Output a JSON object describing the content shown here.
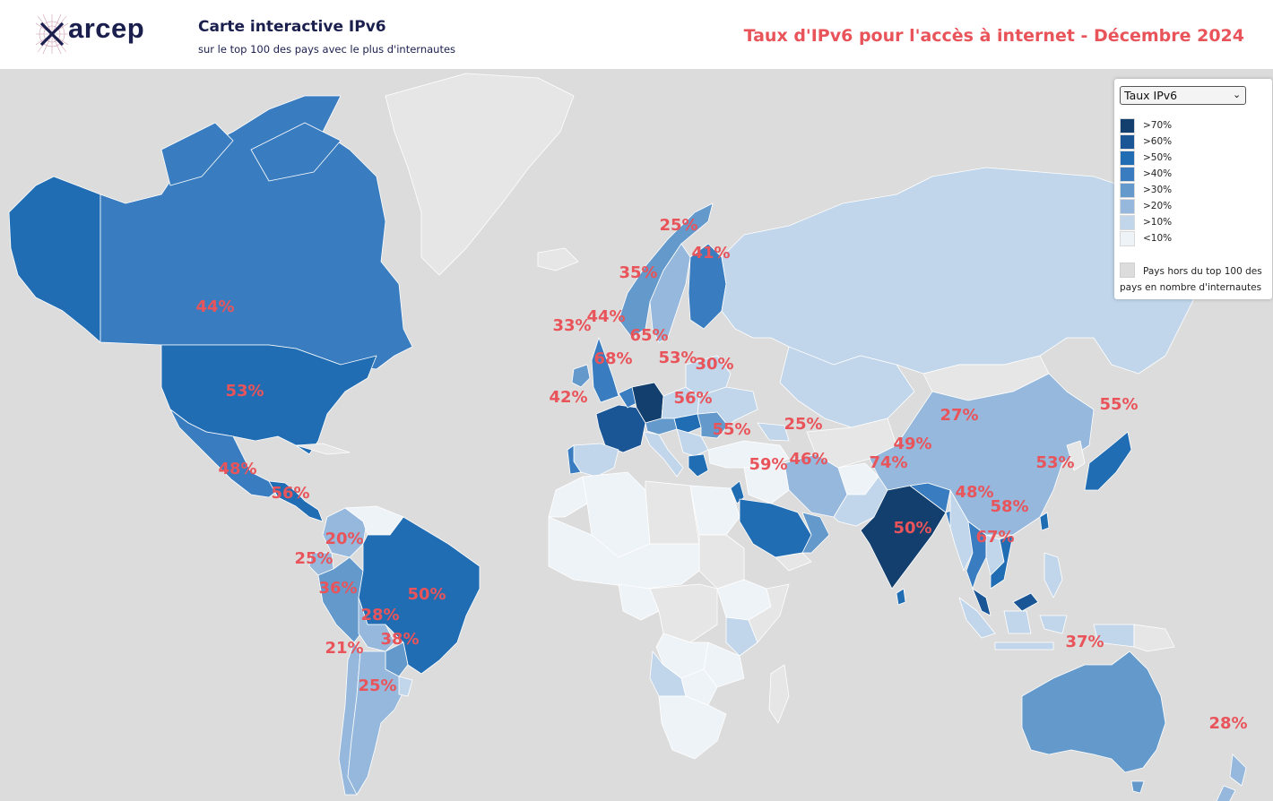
{
  "header": {
    "logo_text": "arcep",
    "app_title": "Carte interactive IPv6",
    "app_subtitle": "sur le top 100 des pays avec le plus d'internautes",
    "map_title": "Taux d'IPv6 pour l'accès à internet - Décembre 2024"
  },
  "legend": {
    "selected_metric": "Taux IPv6",
    "bins": [
      {
        "label": ">70%",
        "color": "#123f6e"
      },
      {
        "label": ">60%",
        "color": "#1a5596"
      },
      {
        "label": ">50%",
        "color": "#216db3"
      },
      {
        "label": ">40%",
        "color": "#397dc0"
      },
      {
        "label": ">30%",
        "color": "#6499cb"
      },
      {
        "label": ">20%",
        "color": "#95b8dc"
      },
      {
        "label": ">10%",
        "color": "#c1d6ea"
      },
      {
        "label": "<10%",
        "color": "#eef3f8"
      }
    ],
    "no_data_label": "Pays hors du top 100 des pays en nombre d'internautes",
    "no_data_color": "#dcdcdc"
  },
  "map": {
    "ocean_color": "#dcdcdc",
    "country_labels": [
      {
        "country": "Canada",
        "value": "44%"
      },
      {
        "country": "United States",
        "value": "53%"
      },
      {
        "country": "Mexico",
        "value": "48%"
      },
      {
        "country": "Guatemala",
        "value": "56%"
      },
      {
        "country": "Colombia",
        "value": "20%"
      },
      {
        "country": "Ecuador",
        "value": "25%"
      },
      {
        "country": "Peru",
        "value": "36%"
      },
      {
        "country": "Brazil",
        "value": "50%"
      },
      {
        "country": "Bolivia",
        "value": "28%"
      },
      {
        "country": "Paraguay",
        "value": "38%"
      },
      {
        "country": "Chile",
        "value": "21%"
      },
      {
        "country": "Argentina",
        "value": "25%"
      },
      {
        "country": "Norway",
        "value": "35%"
      },
      {
        "country": "Sweden",
        "value": "25%"
      },
      {
        "country": "Finland",
        "value": "41%"
      },
      {
        "country": "Ireland",
        "value": "33%"
      },
      {
        "country": "United Kingdom",
        "value": "44%"
      },
      {
        "country": "Germany",
        "value": "65%"
      },
      {
        "country": "France",
        "value": "68%"
      },
      {
        "country": "Hungary",
        "value": "53%"
      },
      {
        "country": "Romania",
        "value": "30%"
      },
      {
        "country": "Portugal",
        "value": "42%"
      },
      {
        "country": "Greece",
        "value": "56%"
      },
      {
        "country": "Israel",
        "value": "55%"
      },
      {
        "country": "Iran",
        "value": "25%"
      },
      {
        "country": "Saudi Arabia",
        "value": "59%"
      },
      {
        "country": "Oman",
        "value": "46%"
      },
      {
        "country": "India",
        "value": "74%"
      },
      {
        "country": "Bhutan",
        "value": "49%"
      },
      {
        "country": "China",
        "value": "27%"
      },
      {
        "country": "Japan",
        "value": "55%"
      },
      {
        "country": "Taiwan",
        "value": "53%"
      },
      {
        "country": "Thailand",
        "value": "48%"
      },
      {
        "country": "Vietnam",
        "value": "58%"
      },
      {
        "country": "Malaysia",
        "value": "67%"
      },
      {
        "country": "Sri Lanka",
        "value": "50%"
      },
      {
        "country": "Australia",
        "value": "37%"
      },
      {
        "country": "New Zealand",
        "value": "28%"
      }
    ]
  }
}
